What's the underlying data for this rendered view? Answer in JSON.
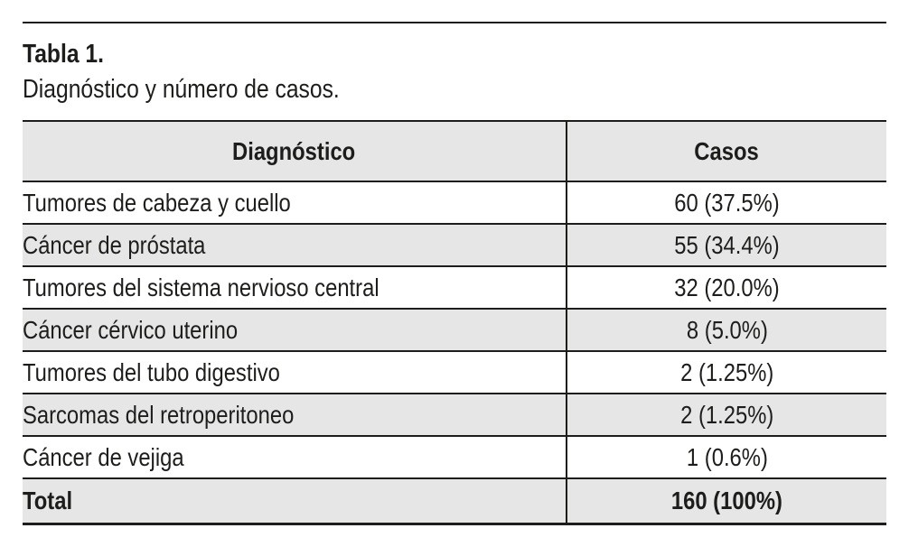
{
  "caption": {
    "label": "Tabla 1.",
    "text": "Diagnóstico y número de casos."
  },
  "table": {
    "columns": [
      "Diagnóstico",
      "Casos"
    ],
    "rows": [
      {
        "diagnosis": "Tumores de cabeza y cuello",
        "cases": "60 (37.5%)"
      },
      {
        "diagnosis": "Cáncer de próstata",
        "cases": "55 (34.4%)"
      },
      {
        "diagnosis": "Tumores del sistema nervioso central",
        "cases": "32 (20.0%)"
      },
      {
        "diagnosis": "Cáncer cérvico uterino",
        "cases": "8 (5.0%)"
      },
      {
        "diagnosis": "Tumores del tubo digestivo",
        "cases": "2 (1.25%)"
      },
      {
        "diagnosis": "Sarcomas del retroperitoneo",
        "cases": "2 (1.25%)"
      },
      {
        "diagnosis": "Cáncer de vejiga",
        "cases": "1 (0.6%)"
      }
    ],
    "total": {
      "label": "Total",
      "cases": "160 (100%)"
    }
  },
  "colors": {
    "row_shade": "#e6e6e7",
    "border": "#1d1d1b",
    "text": "#1d1d1b",
    "background": "#ffffff"
  }
}
